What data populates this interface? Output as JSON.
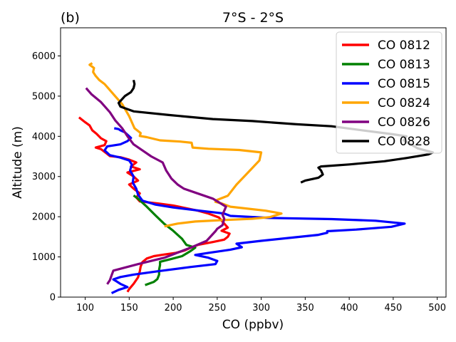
{
  "chart_data": {
    "type": "line",
    "panel_label": "(b)",
    "title": "7°S - 2°S",
    "xlabel": "CO (ppbv)",
    "ylabel": "Altitude (m)",
    "xlim": [
      72,
      510
    ],
    "ylim": [
      0,
      6700
    ],
    "xticks": [
      100,
      150,
      200,
      250,
      300,
      350,
      400,
      450,
      500
    ],
    "yticks": [
      0,
      1000,
      2000,
      3000,
      4000,
      5000,
      6000
    ],
    "grid": false,
    "legend_position": "top-right",
    "series": [
      {
        "name": "CO 0812",
        "color": "#ff0000",
        "points": [
          [
            148,
            130
          ],
          [
            150,
            200
          ],
          [
            155,
            330
          ],
          [
            160,
            490
          ],
          [
            162,
            640
          ],
          [
            163,
            760
          ],
          [
            165,
            870
          ],
          [
            170,
            960
          ],
          [
            178,
            1020
          ],
          [
            190,
            1060
          ],
          [
            203,
            1100
          ],
          [
            213,
            1160
          ],
          [
            220,
            1230
          ],
          [
            228,
            1300
          ],
          [
            245,
            1370
          ],
          [
            258,
            1430
          ],
          [
            262,
            1500
          ],
          [
            264,
            1580
          ],
          [
            255,
            1650
          ],
          [
            262,
            1730
          ],
          [
            258,
            1830
          ],
          [
            252,
            1980
          ],
          [
            240,
            2080
          ],
          [
            228,
            2150
          ],
          [
            215,
            2210
          ],
          [
            200,
            2280
          ],
          [
            182,
            2330
          ],
          [
            162,
            2380
          ],
          [
            158,
            2480
          ],
          [
            162,
            2580
          ],
          [
            155,
            2700
          ],
          [
            150,
            2800
          ],
          [
            160,
            2900
          ],
          [
            155,
            3000
          ],
          [
            148,
            3100
          ],
          [
            162,
            3180
          ],
          [
            152,
            3250
          ],
          [
            158,
            3350
          ],
          [
            150,
            3420
          ],
          [
            140,
            3480
          ],
          [
            128,
            3510
          ],
          [
            124,
            3580
          ],
          [
            118,
            3680
          ],
          [
            112,
            3720
          ],
          [
            122,
            3780
          ],
          [
            124,
            3880
          ],
          [
            118,
            3950
          ],
          [
            113,
            4060
          ],
          [
            108,
            4150
          ],
          [
            105,
            4270
          ],
          [
            100,
            4350
          ],
          [
            93,
            4470
          ]
        ]
      },
      {
        "name": "CO 0813",
        "color": "#008000",
        "points": [
          [
            168,
            300
          ],
          [
            178,
            380
          ],
          [
            182,
            450
          ],
          [
            184,
            560
          ],
          [
            184,
            680
          ],
          [
            185,
            800
          ],
          [
            185,
            880
          ],
          [
            198,
            950
          ],
          [
            210,
            1020
          ],
          [
            220,
            1150
          ],
          [
            225,
            1230
          ],
          [
            215,
            1300
          ],
          [
            210,
            1450
          ],
          [
            200,
            1650
          ],
          [
            190,
            1820
          ],
          [
            180,
            2030
          ],
          [
            170,
            2250
          ],
          [
            160,
            2450
          ],
          [
            155,
            2530
          ]
        ]
      },
      {
        "name": "CO 0815",
        "color": "#0000ff",
        "points": [
          [
            130,
            100
          ],
          [
            138,
            180
          ],
          [
            148,
            250
          ],
          [
            140,
            330
          ],
          [
            135,
            400
          ],
          [
            132,
            440
          ],
          [
            140,
            500
          ],
          [
            155,
            560
          ],
          [
            185,
            650
          ],
          [
            220,
            750
          ],
          [
            248,
            820
          ],
          [
            250,
            900
          ],
          [
            240,
            980
          ],
          [
            225,
            1050
          ],
          [
            240,
            1100
          ],
          [
            265,
            1180
          ],
          [
            278,
            1240
          ],
          [
            272,
            1330
          ],
          [
            300,
            1400
          ],
          [
            335,
            1480
          ],
          [
            365,
            1550
          ],
          [
            375,
            1600
          ],
          [
            375,
            1640
          ],
          [
            408,
            1680
          ],
          [
            448,
            1750
          ],
          [
            463,
            1830
          ],
          [
            430,
            1900
          ],
          [
            380,
            1940
          ],
          [
            310,
            1970
          ],
          [
            265,
            2020
          ],
          [
            258,
            2080
          ],
          [
            230,
            2150
          ],
          [
            200,
            2230
          ],
          [
            180,
            2300
          ],
          [
            165,
            2400
          ],
          [
            160,
            2550
          ],
          [
            158,
            2700
          ],
          [
            154,
            2850
          ],
          [
            155,
            3000
          ],
          [
            151,
            3150
          ],
          [
            153,
            3300
          ],
          [
            150,
            3400
          ],
          [
            140,
            3470
          ],
          [
            128,
            3530
          ],
          [
            122,
            3650
          ],
          [
            125,
            3750
          ],
          [
            140,
            3800
          ],
          [
            148,
            3880
          ],
          [
            152,
            3960
          ],
          [
            145,
            4100
          ],
          [
            140,
            4150
          ],
          [
            138,
            4180
          ],
          [
            133,
            4200
          ]
        ]
      },
      {
        "name": "CO 0824",
        "color": "#ffa500",
        "points": [
          [
            190,
            1760
          ],
          [
            205,
            1830
          ],
          [
            225,
            1880
          ],
          [
            260,
            1920
          ],
          [
            290,
            1950
          ],
          [
            310,
            1990
          ],
          [
            323,
            2080
          ],
          [
            305,
            2150
          ],
          [
            265,
            2250
          ],
          [
            255,
            2330
          ],
          [
            248,
            2370
          ],
          [
            250,
            2420
          ],
          [
            262,
            2520
          ],
          [
            272,
            2800
          ],
          [
            285,
            3100
          ],
          [
            298,
            3400
          ],
          [
            300,
            3600
          ],
          [
            275,
            3660
          ],
          [
            240,
            3690
          ],
          [
            222,
            3720
          ],
          [
            221,
            3840
          ],
          [
            208,
            3870
          ],
          [
            185,
            3900
          ],
          [
            170,
            3980
          ],
          [
            162,
            4010
          ],
          [
            163,
            4080
          ],
          [
            156,
            4200
          ],
          [
            150,
            4500
          ],
          [
            142,
            4800
          ],
          [
            134,
            5000
          ],
          [
            126,
            5200
          ],
          [
            122,
            5300
          ],
          [
            116,
            5400
          ],
          [
            112,
            5500
          ],
          [
            109,
            5600
          ],
          [
            110,
            5700
          ],
          [
            105,
            5780
          ],
          [
            108,
            5820
          ]
        ]
      },
      {
        "name": "CO 0826",
        "color": "#800080",
        "points": [
          [
            125,
            320
          ],
          [
            128,
            420
          ],
          [
            130,
            540
          ],
          [
            132,
            660
          ],
          [
            160,
            820
          ],
          [
            190,
            980
          ],
          [
            222,
            1250
          ],
          [
            238,
            1400
          ],
          [
            248,
            1640
          ],
          [
            250,
            1700
          ],
          [
            256,
            1790
          ],
          [
            258,
            1950
          ],
          [
            256,
            2050
          ],
          [
            260,
            2250
          ],
          [
            245,
            2450
          ],
          [
            225,
            2600
          ],
          [
            212,
            2700
          ],
          [
            205,
            2800
          ],
          [
            198,
            2950
          ],
          [
            195,
            3050
          ],
          [
            192,
            3150
          ],
          [
            188,
            3350
          ],
          [
            175,
            3500
          ],
          [
            165,
            3650
          ],
          [
            155,
            3800
          ],
          [
            148,
            4000
          ],
          [
            142,
            4200
          ],
          [
            134,
            4400
          ],
          [
            128,
            4600
          ],
          [
            118,
            4850
          ],
          [
            107,
            5050
          ],
          [
            101,
            5200
          ]
        ]
      },
      {
        "name": "CO 0828",
        "color": "#000000",
        "points": [
          [
            345,
            2850
          ],
          [
            350,
            2900
          ],
          [
            365,
            2970
          ],
          [
            370,
            3050
          ],
          [
            368,
            3150
          ],
          [
            365,
            3220
          ],
          [
            368,
            3250
          ],
          [
            400,
            3300
          ],
          [
            440,
            3380
          ],
          [
            465,
            3460
          ],
          [
            490,
            3550
          ],
          [
            495,
            3600
          ],
          [
            488,
            3640
          ],
          [
            478,
            3700
          ],
          [
            462,
            3900
          ],
          [
            465,
            4000
          ],
          [
            450,
            4050
          ],
          [
            415,
            4150
          ],
          [
            380,
            4250
          ],
          [
            340,
            4300
          ],
          [
            290,
            4380
          ],
          [
            245,
            4430
          ],
          [
            195,
            4530
          ],
          [
            155,
            4620
          ],
          [
            140,
            4740
          ],
          [
            138,
            4830
          ],
          [
            145,
            5000
          ],
          [
            152,
            5100
          ],
          [
            155,
            5200
          ],
          [
            156,
            5300
          ],
          [
            155,
            5400
          ]
        ]
      }
    ]
  }
}
